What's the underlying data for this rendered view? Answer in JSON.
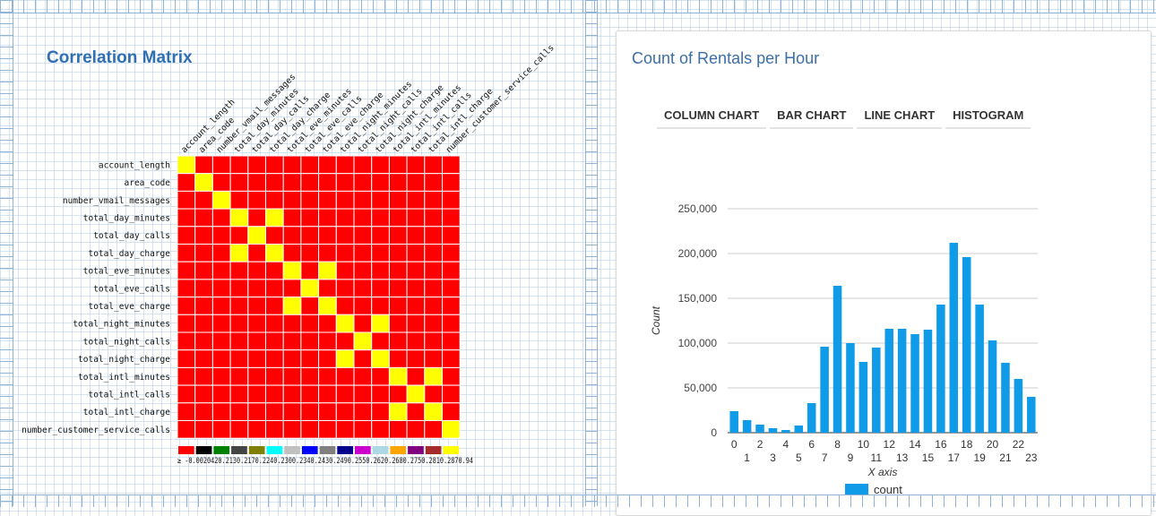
{
  "left_panel": {
    "title": "Correlation Matrix",
    "matrix_labels": [
      "account_length",
      "area_code",
      "number_vmail_messages",
      "total_day_minutes",
      "total_day_calls",
      "total_day_charge",
      "total_eve_minutes",
      "total_eve_calls",
      "total_eve_charge",
      "total_night_minutes",
      "total_night_calls",
      "total_night_charge",
      "total_intl_minutes",
      "total_intl_calls",
      "total_intl_charge",
      "number_customer_service_calls"
    ],
    "yellow_cells": [
      [
        0,
        0
      ],
      [
        1,
        1
      ],
      [
        2,
        2
      ],
      [
        3,
        3
      ],
      [
        3,
        5
      ],
      [
        4,
        4
      ],
      [
        5,
        3
      ],
      [
        5,
        5
      ],
      [
        6,
        6
      ],
      [
        6,
        8
      ],
      [
        7,
        7
      ],
      [
        8,
        6
      ],
      [
        8,
        8
      ],
      [
        9,
        9
      ],
      [
        9,
        11
      ],
      [
        10,
        10
      ],
      [
        11,
        9
      ],
      [
        11,
        11
      ],
      [
        12,
        12
      ],
      [
        12,
        14
      ],
      [
        13,
        13
      ],
      [
        14,
        12
      ],
      [
        14,
        14
      ],
      [
        15,
        15
      ]
    ],
    "cell_color": "#ff0000",
    "highlight_color": "#ffff00",
    "legend_colors": [
      "#ff0000",
      "#000000",
      "#008000",
      "#444444",
      "#808000",
      "#00ffff",
      "#c0c0c0",
      "#0000ff",
      "#808080",
      "#00008b",
      "#cc00cc",
      "#add8e6",
      "#ffa500",
      "#800080",
      "#a52a2a",
      "#ffff00"
    ],
    "legend_text": "≥ -0.0020420.2130.2170.2240.2300.2340.2430.2490.2550.2620.2680.2750.2810.2870.94"
  },
  "right_panel": {
    "title": "Count of Rentals per Hour",
    "buttons": [
      "COLUMN CHART",
      "BAR CHART",
      "LINE CHART",
      "HISTOGRAM"
    ]
  },
  "chart_data": {
    "type": "bar",
    "categories": [
      "0",
      "1",
      "2",
      "3",
      "4",
      "5",
      "6",
      "7",
      "8",
      "9",
      "10",
      "11",
      "12",
      "13",
      "14",
      "15",
      "16",
      "17",
      "18",
      "19",
      "20",
      "21",
      "22",
      "23"
    ],
    "series": [
      {
        "name": "count",
        "values": [
          24000,
          14000,
          9000,
          5000,
          3000,
          8000,
          33000,
          96000,
          164000,
          100000,
          79000,
          95000,
          116000,
          116000,
          110000,
          115000,
          143000,
          212000,
          196000,
          143000,
          103000,
          78000,
          60000,
          40000
        ],
        "color": "#0f9be8"
      }
    ],
    "xlabel": "X axis",
    "ylabel": "Count",
    "ylim": [
      0,
      250000
    ],
    "yticks": [
      "0",
      "50,000",
      "100,000",
      "150,000",
      "200,000",
      "250,000"
    ],
    "legend": "bottom"
  }
}
